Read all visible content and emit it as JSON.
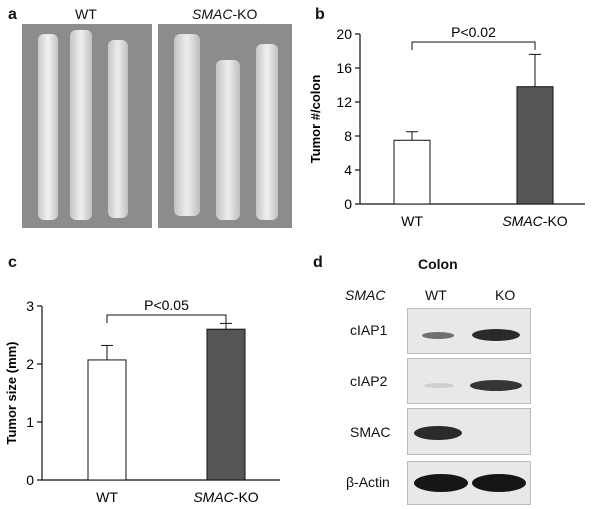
{
  "panel_a": {
    "letter": "a",
    "label_wt": "WT",
    "label_ko_italic": "SMAC",
    "label_ko_suffix": "-KO"
  },
  "panel_b": {
    "letter": "b",
    "chart_data": {
      "type": "bar",
      "categories_plain": [
        "WT",
        ""
      ],
      "category_2_italic": "SMAC",
      "category_2_suffix": "-KO",
      "values": [
        7.5,
        13.8
      ],
      "errors": [
        1.0,
        3.8
      ],
      "ylabel": "Tumor #/colon",
      "ylim": [
        0,
        20
      ],
      "yticks": [
        0,
        4,
        8,
        12,
        16,
        20
      ],
      "annotation": "P<0.02",
      "bar_colors": [
        "#ffffff",
        "#555555"
      ]
    }
  },
  "panel_c": {
    "letter": "c",
    "chart_data": {
      "type": "bar",
      "values": [
        2.07,
        2.6
      ],
      "errors": [
        0.25,
        0.1
      ],
      "ylabel": "Tumor size (mm)",
      "ylim": [
        0,
        3
      ],
      "yticks": [
        0,
        1,
        2,
        3
      ],
      "annotation": "P<0.05",
      "bar_colors": [
        "#ffffff",
        "#555555"
      ]
    }
  },
  "panel_d": {
    "letter": "d",
    "title": "Colon",
    "header_gene": "SMAC",
    "header_wt": "WT",
    "header_ko": "KO",
    "rows": [
      {
        "label": "cIAP1"
      },
      {
        "label": "cIAP2"
      },
      {
        "label": "SMAC"
      },
      {
        "label": "β-Actin"
      }
    ]
  }
}
